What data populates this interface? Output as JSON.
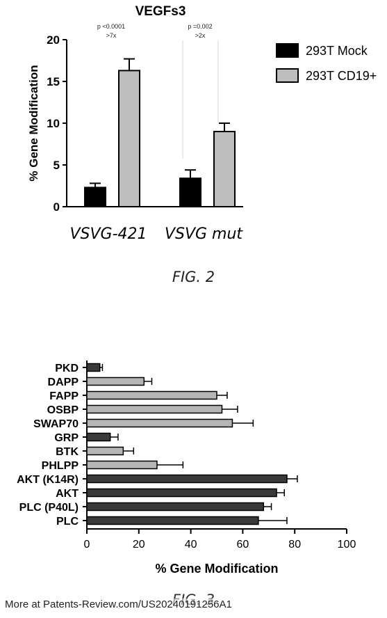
{
  "chart_data": [
    {
      "type": "bar",
      "title": "VEGFs3",
      "ylabel": "% Gene Modification",
      "xlabel": "",
      "ylim": [
        0,
        20
      ],
      "yticks": [
        0,
        5,
        10,
        15,
        20
      ],
      "categories": [
        "VSVG-421",
        "VSVG mut"
      ],
      "series": [
        {
          "name": "293T Mock",
          "color": "#000000",
          "values": [
            2.3,
            3.4
          ],
          "errors": [
            0.5,
            1.0
          ]
        },
        {
          "name": "293T CD19+",
          "color": "#bdbdbd",
          "values": [
            16.3,
            9.0
          ],
          "errors": [
            1.4,
            1.0
          ]
        }
      ],
      "annotations": [
        {
          "category": "VSVG-421",
          "line1": "p <0.0001",
          "line2": ">7x"
        },
        {
          "category": "VSVG mut",
          "line1": "p =0.002",
          "line2": ">2x"
        }
      ],
      "legend_position": "right",
      "grid": false
    },
    {
      "type": "bar",
      "orientation": "horizontal",
      "title": "",
      "xlabel": "% Gene Modification",
      "ylabel": "",
      "xlim": [
        0,
        100
      ],
      "xticks": [
        0,
        20,
        40,
        60,
        80,
        100
      ],
      "categories": [
        "PKD",
        "DAPP",
        "FAPP",
        "OSBP",
        "SWAP70",
        "GRP",
        "BTK",
        "PHLPP",
        "AKT (K14R)",
        "AKT",
        "PLC (P40L)",
        "PLC"
      ],
      "values": [
        5,
        22,
        50,
        52,
        56,
        9,
        14,
        27,
        77,
        73,
        68,
        66
      ],
      "errors": [
        1,
        3,
        4,
        6,
        8,
        3,
        4,
        10,
        4,
        3,
        3,
        11
      ],
      "colors": [
        "#3a3a3a",
        "#b5b5b5",
        "#b5b5b5",
        "#b5b5b5",
        "#b5b5b5",
        "#3a3a3a",
        "#b5b5b5",
        "#b5b5b5",
        "#3a3a3a",
        "#3a3a3a",
        "#3a3a3a",
        "#3a3a3a"
      ],
      "grid": false
    }
  ],
  "captions": {
    "fig2": "FIG. 2",
    "fig3": "FIG. 3"
  },
  "footer": "More at Patents-Review.com/US20240191256A1"
}
